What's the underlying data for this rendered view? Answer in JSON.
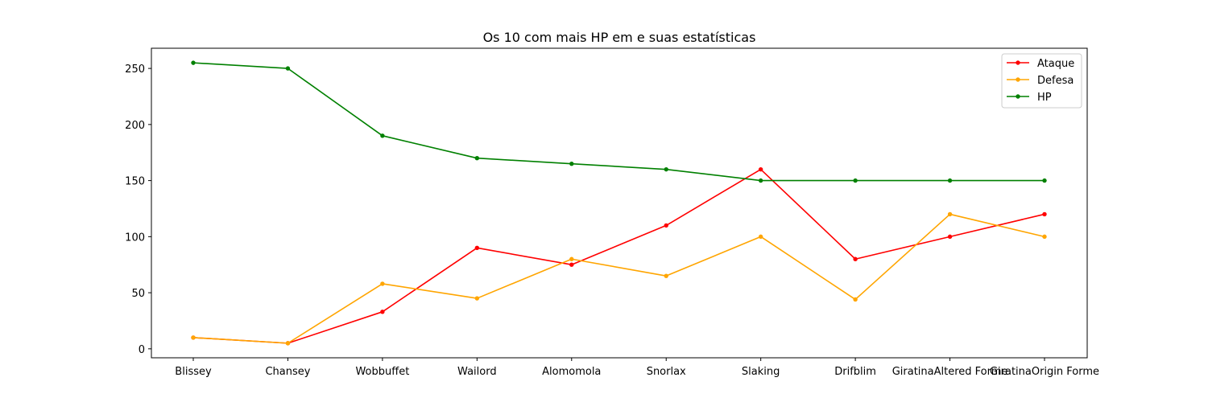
{
  "chart_data": {
    "type": "line",
    "title": "Os 10 com mais HP em e suas estatísticas",
    "xlabel": "",
    "ylabel": "",
    "categories": [
      "Blissey",
      "Chansey",
      "Wobbuffet",
      "Wailord",
      "Alomomola",
      "Snorlax",
      "Slaking",
      "Drifblim",
      "GiratinaAltered Forme",
      "GiratinaOrigin Forme"
    ],
    "series": [
      {
        "name": "Ataque",
        "color": "#ff0000",
        "values": [
          10,
          5,
          33,
          90,
          75,
          110,
          160,
          80,
          100,
          120
        ]
      },
      {
        "name": "Defesa",
        "color": "#ffa500",
        "values": [
          10,
          5,
          58,
          45,
          80,
          65,
          100,
          44,
          120,
          100
        ]
      },
      {
        "name": "HP",
        "color": "#008000",
        "values": [
          255,
          250,
          190,
          170,
          165,
          160,
          150,
          150,
          150,
          150
        ]
      }
    ],
    "ylim": [
      -8,
      268
    ],
    "yticks": [
      0,
      50,
      100,
      150,
      200,
      250
    ],
    "grid": false,
    "legend": "upper right",
    "marker": "dot"
  }
}
